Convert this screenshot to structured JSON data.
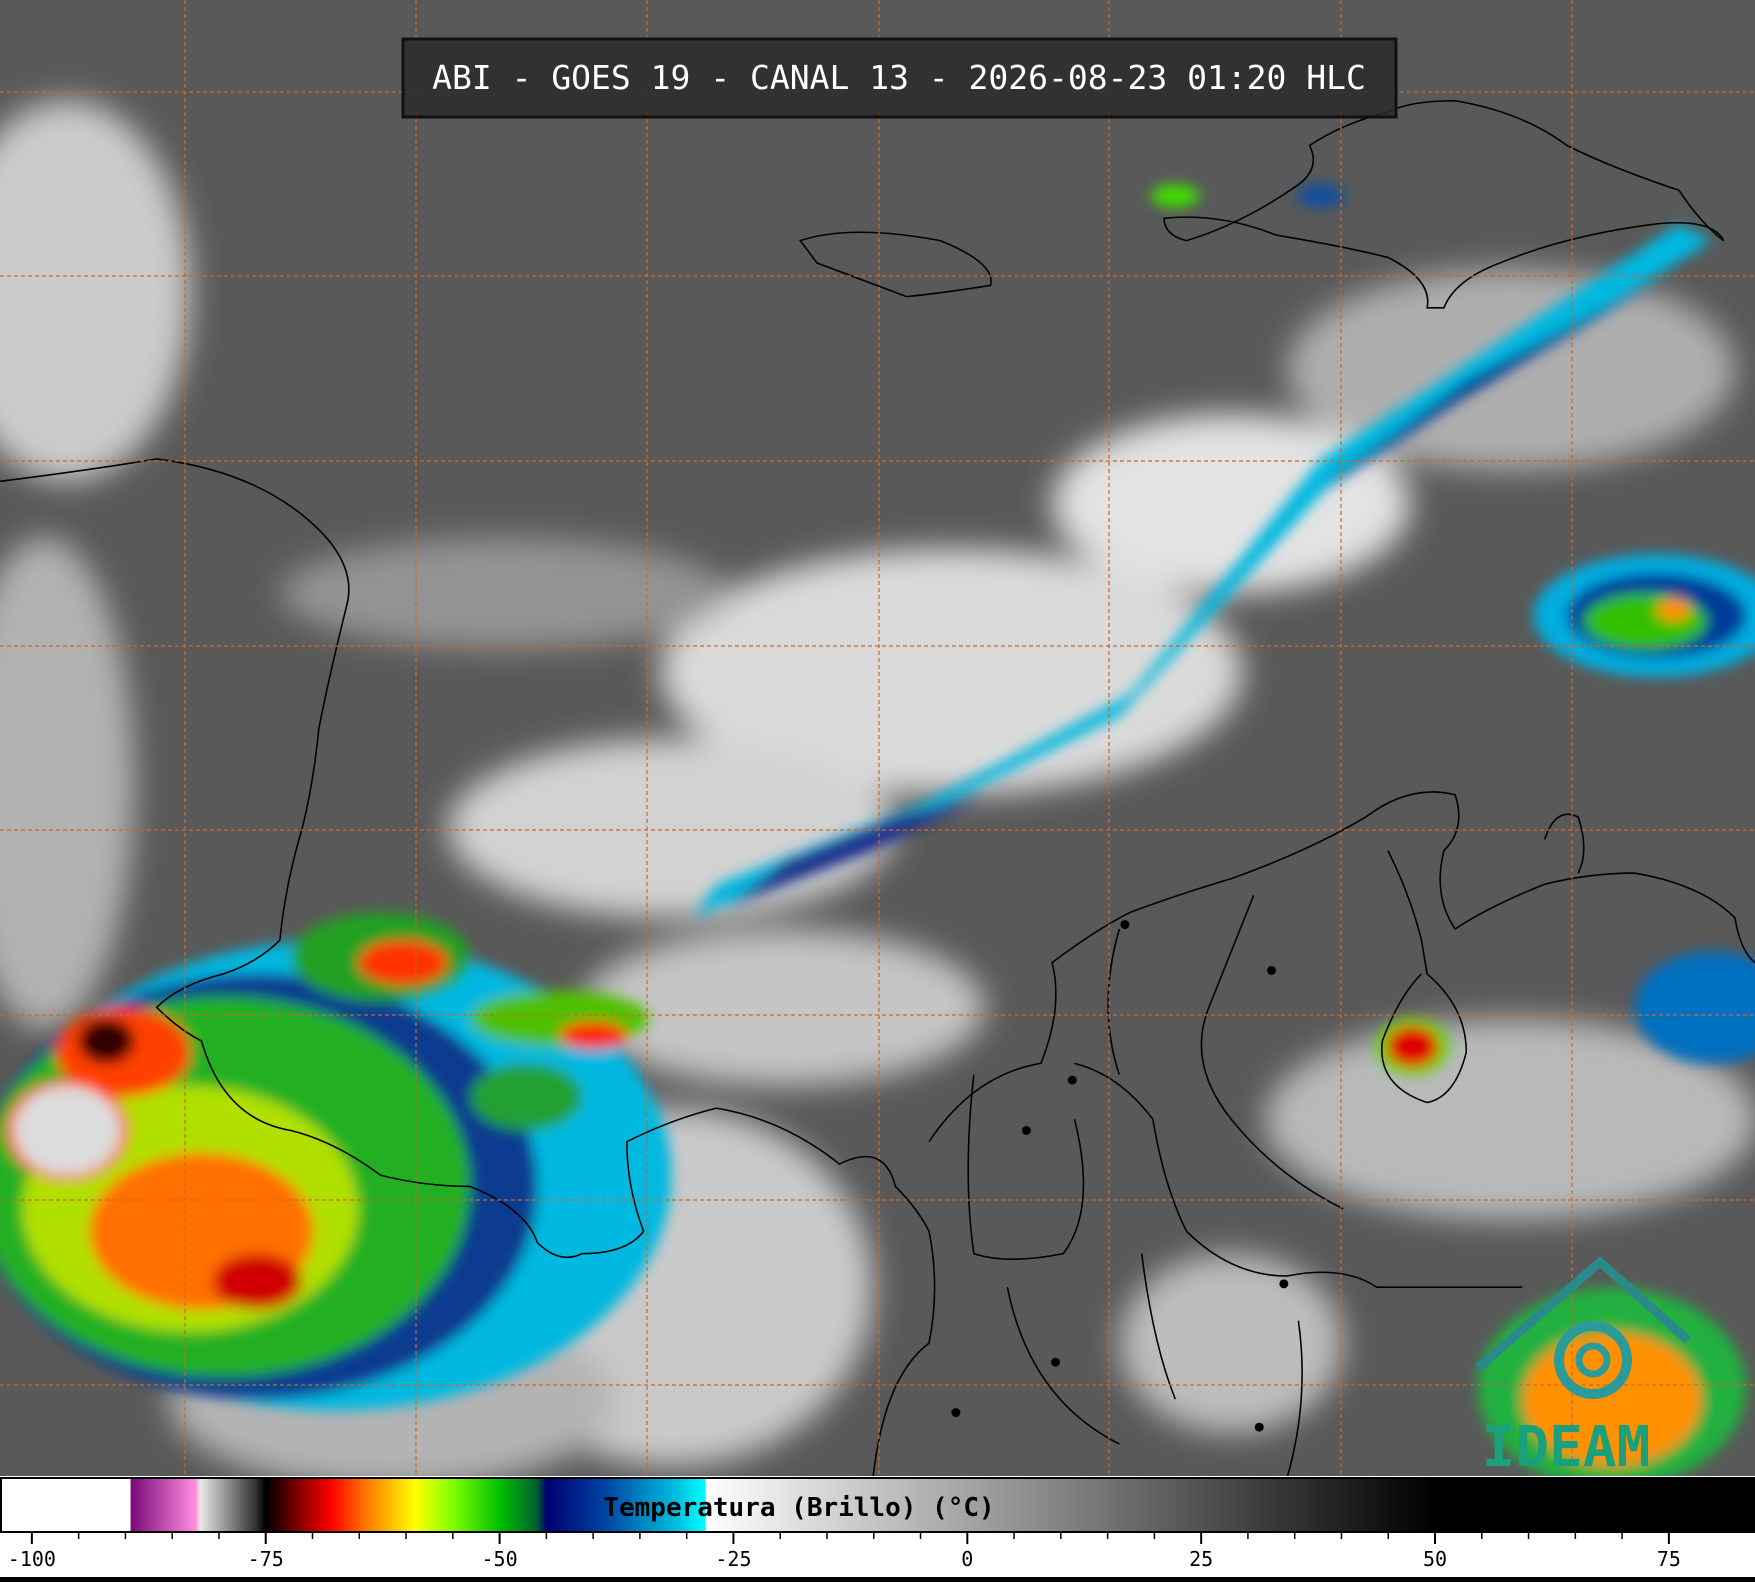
{
  "header": {
    "title": "ABI - GOES 19 - CANAL 13 - 2026-08-23 01:20 HLC"
  },
  "logo": {
    "text": "IDEAM"
  },
  "colorbar": {
    "label": "Temperatura (Brillo) (°C)",
    "lim": [
      -103.3,
      84.1
    ],
    "ticks": [
      -100,
      -75,
      -50,
      -25,
      0,
      25,
      50,
      75
    ],
    "colormap": [
      {
        "value": -103.3,
        "color": "#ffffff"
      },
      {
        "value": -89.5,
        "color": "#ffffff"
      },
      {
        "value": -89.4,
        "color": "#7a0a7a"
      },
      {
        "value": -82.5,
        "color": "#ff8ce0"
      },
      {
        "value": -82,
        "color": "#e8e8e8"
      },
      {
        "value": -76,
        "color": "#303030"
      },
      {
        "value": -75,
        "color": "#000000"
      },
      {
        "value": -72,
        "color": "#700000"
      },
      {
        "value": -68,
        "color": "#ff0000"
      },
      {
        "value": -64,
        "color": "#ff8000"
      },
      {
        "value": -59,
        "color": "#ffff00"
      },
      {
        "value": -55,
        "color": "#80ff00"
      },
      {
        "value": -50,
        "color": "#00c000"
      },
      {
        "value": -46,
        "color": "#006030"
      },
      {
        "value": -45,
        "color": "#000070"
      },
      {
        "value": -39,
        "color": "#0040a0"
      },
      {
        "value": -31,
        "color": "#00c0e0"
      },
      {
        "value": -28,
        "color": "#00ffff"
      },
      {
        "value": -27.9,
        "color": "#ffffff"
      },
      {
        "value": 50,
        "color": "#000000"
      },
      {
        "value": 84.1,
        "color": "#000000"
      }
    ]
  }
}
